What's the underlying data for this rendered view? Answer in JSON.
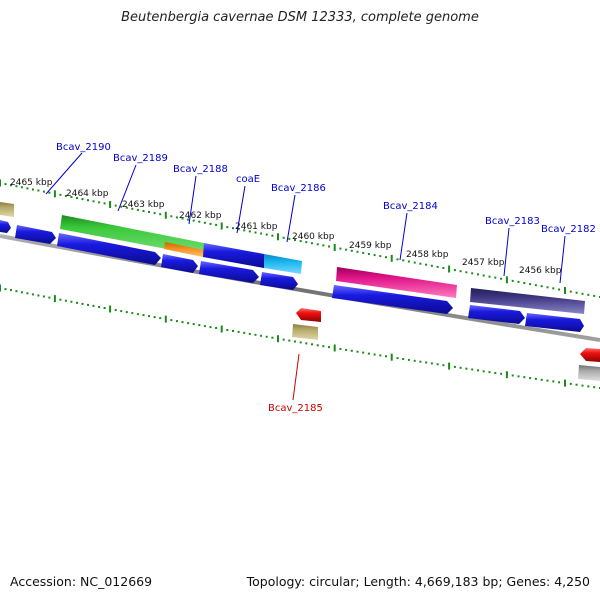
{
  "title": "Beutenbergia cavernae DSM 12333, complete genome",
  "footer": {
    "accession": "Accession: NC_012669",
    "topology": "Topology: circular; Length: 4,669,183 bp; Genes: 4,250"
  },
  "colors": {
    "label_forward": "#0000cc",
    "label_reverse": "#cc0000",
    "cds": "#1010e0",
    "backbone": "#808080",
    "tick": "#1a8a1a"
  },
  "kbp_ticks": [
    {
      "label": "2465 kbp"
    },
    {
      "label": "2464 kbp"
    },
    {
      "label": "2463 kbp"
    },
    {
      "label": "2462 kbp"
    },
    {
      "label": "2461 kbp"
    },
    {
      "label": "2460 kbp"
    },
    {
      "label": "2459 kbp"
    },
    {
      "label": "2458 kbp"
    },
    {
      "label": "2457 kbp"
    },
    {
      "label": "2456 kbp"
    }
  ],
  "gene_labels": [
    {
      "text": "Bcav_2190",
      "strand": "forward"
    },
    {
      "text": "Bcav_2189",
      "strand": "forward"
    },
    {
      "text": "Bcav_2188",
      "strand": "forward"
    },
    {
      "text": "coaE",
      "strand": "forward"
    },
    {
      "text": "Bcav_2186",
      "strand": "forward"
    },
    {
      "text": "Bcav_2184",
      "strand": "forward"
    },
    {
      "text": "Bcav_2183",
      "strand": "forward"
    },
    {
      "text": "Bcav_2182",
      "strand": "forward"
    },
    {
      "text": "Bcav_2185",
      "strand": "reverse"
    }
  ],
  "feature_colors": {
    "tan": "#b5a96a",
    "green": "#2fbf2f",
    "orange": "#f08c1a",
    "blue": "#1a1ae0",
    "cyan": "#19b6f0",
    "magenta": "#e0158a",
    "purple": "#3d3580",
    "red": "#ee1111",
    "gray": "#a8a8a8"
  }
}
